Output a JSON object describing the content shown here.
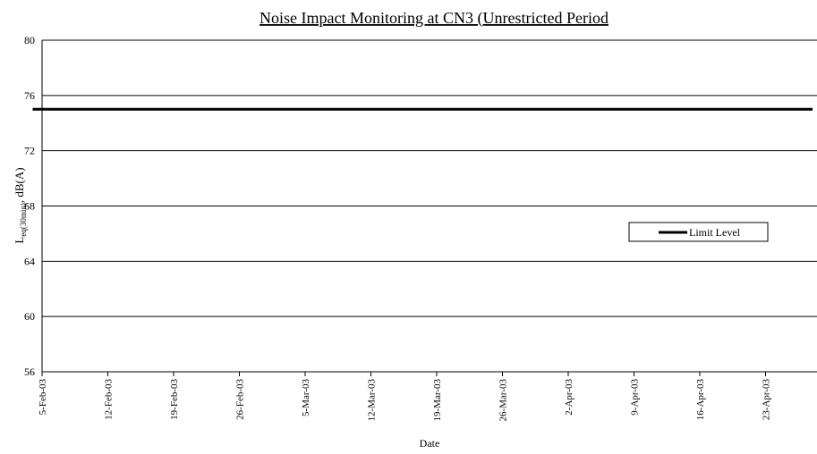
{
  "chart_data": {
    "type": "line",
    "title": "Noise Impact Monitoring at CN3 (Unrestricted Period",
    "x_label": "Date",
    "y_label": [
      "L",
      "eq(30min)",
      ", dB(A)"
    ],
    "x": [
      "4-Feb-03",
      "28-Apr-03"
    ],
    "series": [
      {
        "name": "Limit Level",
        "color": "#000000",
        "values": [
          75,
          75
        ]
      }
    ],
    "xlim": [
      "5-Feb-03",
      "28-Apr-03"
    ],
    "xticks": [
      "5-Feb-03",
      "12-Feb-03",
      "19-Feb-03",
      "26-Feb-03",
      "5-Mar-03",
      "12-Mar-03",
      "19-Mar-03",
      "26-Mar-03",
      "2-Apr-03",
      "9-Apr-03",
      "16-Apr-03",
      "23-Apr-03"
    ],
    "ylim": [
      56,
      80
    ],
    "yticks": [
      56,
      60,
      64,
      68,
      72,
      76,
      80
    ],
    "grid": true,
    "legend": "right"
  }
}
